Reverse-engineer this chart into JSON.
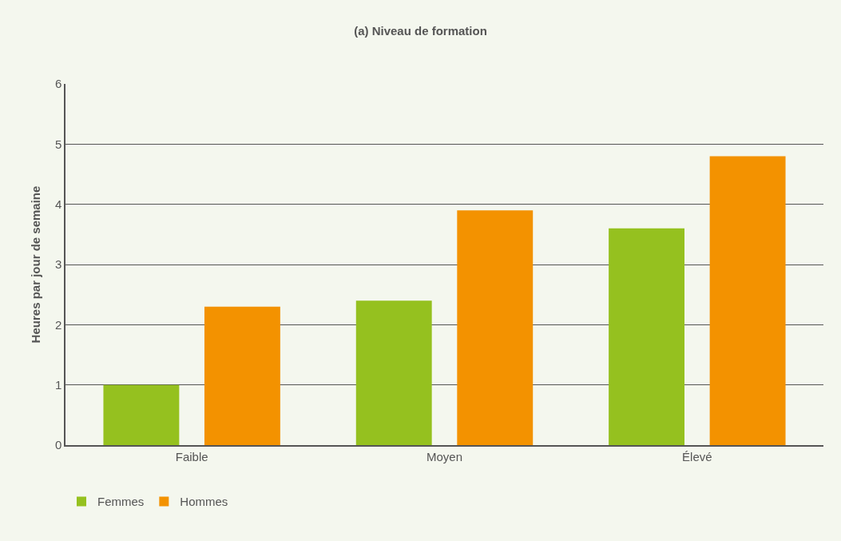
{
  "chart_data": {
    "type": "bar",
    "title": "(a) Niveau de formation",
    "ylabel": "Heures par jour de semaine",
    "categories": [
      "Faible",
      "Moyen",
      "Élevé"
    ],
    "series": [
      {
        "name": "Femmes",
        "color": "#95c11f",
        "values": [
          1.0,
          2.4,
          3.6
        ]
      },
      {
        "name": "Hommes",
        "color": "#f39200",
        "values": [
          2.3,
          3.9,
          4.8
        ]
      }
    ],
    "ylim": [
      0,
      6
    ],
    "yticks": [
      0,
      1,
      2,
      3,
      4,
      5,
      6
    ],
    "grid": "y",
    "legend": "bottom left"
  }
}
